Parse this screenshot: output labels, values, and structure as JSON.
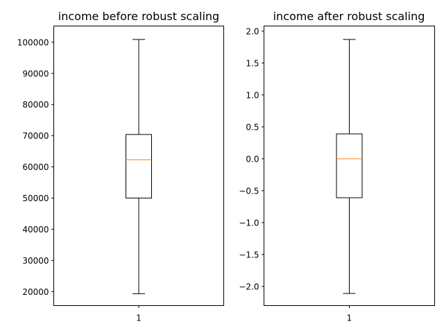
{
  "chart_data": [
    {
      "type": "box",
      "title": "income before robust scaling",
      "xlabel": "",
      "ylabel": "",
      "categories": [
        "1"
      ],
      "ylim": [
        15500,
        105200
      ],
      "yticks": [
        20000,
        30000,
        40000,
        50000,
        60000,
        70000,
        80000,
        90000,
        100000
      ],
      "ytick_labels": [
        "20000",
        "30000",
        "40000",
        "50000",
        "60000",
        "70000",
        "80000",
        "90000",
        "100000"
      ],
      "boxes": [
        {
          "label": "1",
          "whisker_low": 19300,
          "q1": 50000,
          "median": 62300,
          "q3": 70400,
          "whisker_high": 100900
        }
      ],
      "grid": false,
      "colors": {
        "box": "#000000",
        "median": "#ff7f0e"
      }
    },
    {
      "type": "box",
      "title": "income after robust scaling",
      "xlabel": "",
      "ylabel": "",
      "categories": [
        "1"
      ],
      "ylim": [
        -2.3,
        2.08
      ],
      "yticks": [
        -2.0,
        -1.5,
        -1.0,
        -0.5,
        0.0,
        0.5,
        1.0,
        1.5,
        2.0
      ],
      "ytick_labels": [
        "−2.0",
        "−1.5",
        "−1.0",
        "−0.5",
        "0.0",
        "0.5",
        "1.0",
        "1.5",
        "2.0"
      ],
      "boxes": [
        {
          "label": "1",
          "whisker_low": -2.11,
          "q1": -0.61,
          "median": 0.0,
          "q3": 0.39,
          "whisker_high": 1.87
        }
      ],
      "grid": false,
      "colors": {
        "box": "#000000",
        "median": "#ff7f0e"
      }
    }
  ]
}
